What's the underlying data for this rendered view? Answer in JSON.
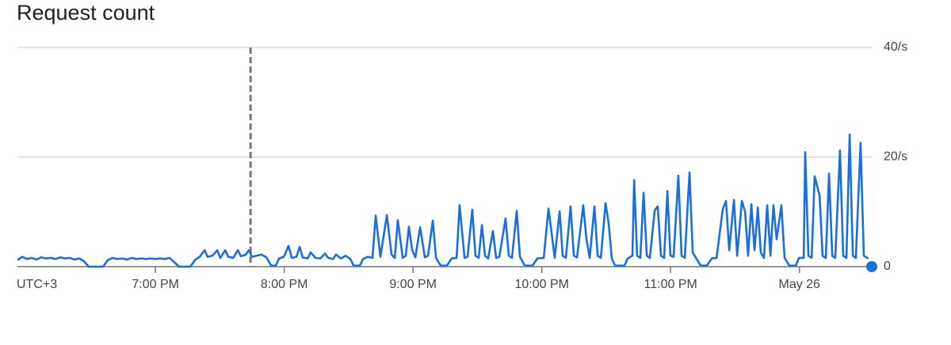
{
  "chart_data": {
    "type": "line",
    "title": "Request count",
    "xlabel": "UTC+3",
    "x": [
      1075.7,
      1077.9,
      1080.2,
      1082.4,
      1084.6,
      1086.8,
      1089.0,
      1091.2,
      1093.4,
      1095.7,
      1097.9,
      1100.1,
      1102.3,
      1104.5,
      1106.7,
      1108.9,
      1115.6,
      1117.8,
      1120.0,
      1122.2,
      1124.5,
      1126.7,
      1128.9,
      1131.1,
      1133.3,
      1135.5,
      1137.7,
      1140,
      1142.2,
      1144.4,
      1146.6,
      1148.8,
      1151.0,
      1156.2,
      1158.4,
      1160.6,
      1162.9,
      1164.3,
      1166.5,
      1168.8,
      1170.2,
      1172.5,
      1173.9,
      1176.2,
      1178.4,
      1179.8,
      1182.1,
      1183.5,
      1185.0,
      1187.2,
      1189.4,
      1191.7,
      1193.9,
      1196.1,
      1197.6,
      1199.8,
      1202.0,
      1203.5,
      1205.7,
      1207.2,
      1208.6,
      1210.9,
      1212.3,
      1214.5,
      1216.8,
      1219.0,
      1220.5,
      1222.7,
      1224.1,
      1226.4,
      1228.6,
      1230.8,
      1232.3,
      1235.2,
      1236.7,
      1238.9,
      1241.1,
      1242.6,
      1244.8,
      1247.8,
      1250.0,
      1251.5,
      1252.9,
      1255.2,
      1256.6,
      1258.1,
      1259.6,
      1261.1,
      1263.3,
      1265.5,
      1267.0,
      1269.2,
      1270.7,
      1272.9,
      1275.8,
      1278.0,
      1280.3,
      1281.7,
      1284.0,
      1285.4,
      1287.6,
      1289.1,
      1290.6,
      1292.1,
      1293.5,
      1295.0,
      1297.2,
      1298.7,
      1300.2,
      1303.1,
      1304.6,
      1306.1,
      1308.3,
      1309.8,
      1312.0,
      1315.7,
      1317.9,
      1320.9,
      1323.1,
      1324.6,
      1326.0,
      1328.3,
      1329.7,
      1331.2,
      1333.4,
      1334.9,
      1336.4,
      1339.3,
      1340.8,
      1342.3,
      1344.5,
      1346.0,
      1347.5,
      1349.7,
      1351.1,
      1352.6,
      1354.1,
      1358.5,
      1360.0,
      1362.2,
      1363.0,
      1364.4,
      1365.9,
      1367.4,
      1368.9,
      1370.3,
      1372.6,
      1374.0,
      1375.5,
      1377.0,
      1378.5,
      1379.9,
      1381.4,
      1383.6,
      1385.1,
      1386.6,
      1388.8,
      1390.3,
      1391.8,
      1394.0,
      1396.9,
      1399.2,
      1401.4,
      1404.3,
      1405.8,
      1407.3,
      1409.5,
      1411.0,
      1413.2,
      1414.7,
      1416.1,
      1417.6,
      1419.1,
      1420.6,
      1422.0,
      1423.5,
      1425.0,
      1426.5,
      1427.9,
      1429.4,
      1431.6,
      1433.1,
      1435.3,
      1438.3,
      1439.8,
      1442.0,
      1442.7,
      1444.2,
      1445.7,
      1447.1,
      1449.4,
      1450.8,
      1452.3,
      1453.8,
      1455.3,
      1456.7,
      1458.9,
      1460.4,
      1461.9,
      1463.4,
      1464.9,
      1466.3,
      1468.5,
      1470.0,
      1471.5,
      1472.2
    ],
    "series": [
      {
        "color": "#1a6fdf",
        "values": [
          1.2,
          1.8,
          1.4,
          1.6,
          1.3,
          1.7,
          1.5,
          1.6,
          1.4,
          1.7,
          1.5,
          1.6,
          1.3,
          1.5,
          1.0,
          0,
          0,
          1.2,
          1.6,
          1.4,
          1.5,
          1.3,
          1.6,
          1.4,
          1.5,
          1.4,
          1.5,
          1.4,
          1.5,
          1.4,
          1.6,
          0.8,
          0,
          0,
          1.2,
          1.8,
          3.0,
          1.8,
          2.0,
          3.0,
          1.6,
          3.0,
          1.8,
          1.6,
          3.0,
          1.9,
          2.2,
          3.0,
          1.8,
          2.0,
          2.2,
          1.7,
          0.2,
          0.2,
          1.5,
          1.8,
          3.8,
          1.6,
          1.8,
          3.6,
          1.7,
          1.5,
          2.6,
          1.6,
          1.5,
          2.4,
          1.6,
          1.4,
          2.2,
          1.5,
          2.0,
          1.4,
          0.2,
          0.2,
          1.4,
          1.8,
          1.6,
          9.3,
          1.8,
          9.4,
          2.2,
          1.6,
          8.5,
          1.6,
          2.0,
          7.3,
          3,
          1.7,
          7.2,
          1.7,
          2,
          8.4,
          1.6,
          0.2,
          0.2,
          1.5,
          1.6,
          11.2,
          1.6,
          1.8,
          10.4,
          2,
          1.6,
          7.6,
          2,
          1.5,
          6.5,
          1.6,
          1.8,
          8.8,
          2,
          1.6,
          10.2,
          1.8,
          0.2,
          0.2,
          1.5,
          1.6,
          10.6,
          6,
          1.6,
          10.1,
          2,
          1.6,
          11,
          2,
          1.7,
          11.2,
          5,
          1.6,
          11,
          2,
          1.6,
          11.6,
          8,
          1.5,
          0.2,
          0.2,
          1.5,
          2,
          15.8,
          2,
          1.6,
          13.5,
          2,
          1.6,
          10.3,
          11,
          2,
          1.6,
          13.8,
          2,
          1.8,
          16.6,
          2,
          1.6,
          17.2,
          2.6,
          1.6,
          0.2,
          0.2,
          1.5,
          1.6,
          10.5,
          12,
          3,
          12.2,
          2,
          12,
          10,
          2,
          11.4,
          3,
          10.8,
          2.6,
          1.6,
          11.2,
          2,
          11.2,
          5,
          11.2,
          1.6,
          0.2,
          0.2,
          1.6,
          1.6,
          20.9,
          2,
          1.6,
          16.5,
          13,
          2,
          1.6,
          17.0,
          2,
          1.6,
          21.2,
          2,
          1.6,
          24.1,
          2,
          1.6,
          22.6,
          2,
          1.6,
          1.6
        ]
      }
    ],
    "xlim": [
      1075.7,
      1473.7
    ],
    "xticks": [
      {
        "value": 1140,
        "label": "7:00 PM"
      },
      {
        "value": 1200,
        "label": "8:00 PM"
      },
      {
        "value": 1260,
        "label": "9:00 PM"
      },
      {
        "value": 1320,
        "label": "10:00 PM"
      },
      {
        "value": 1380,
        "label": "11:00 PM"
      },
      {
        "value": 1440,
        "label": "May 26"
      }
    ],
    "ylim": [
      0,
      40
    ],
    "yticks": [
      0,
      {
        "value": 20,
        "label": "20/s"
      },
      {
        "value": 40,
        "label": "40/s"
      }
    ],
    "grid": true,
    "vline": 1184.3,
    "current_point": {
      "x": 1473.7,
      "y": 0
    }
  }
}
